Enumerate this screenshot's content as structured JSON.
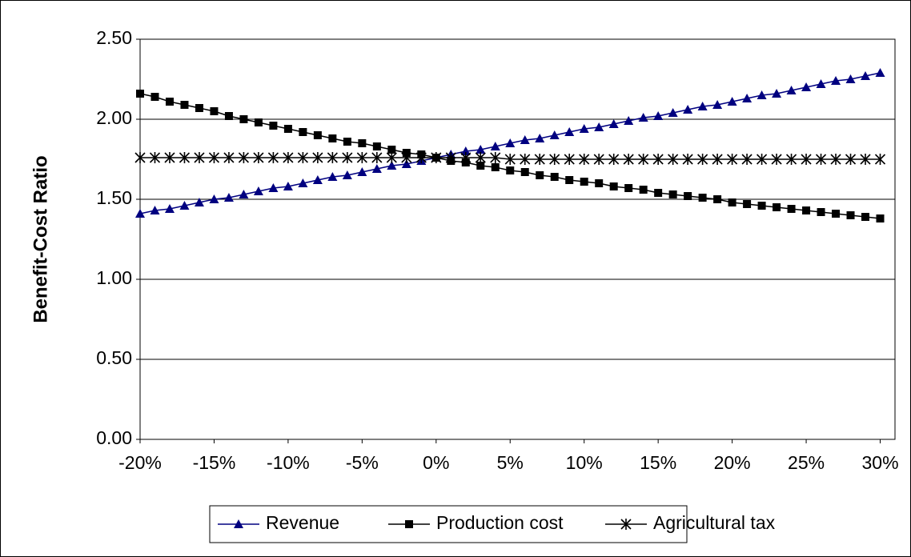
{
  "chart_data": {
    "type": "line",
    "y_label": "Benefit-Cost Ratio",
    "x": [
      -20,
      -19,
      -18,
      -17,
      -16,
      -15,
      -14,
      -13,
      -12,
      -11,
      -10,
      -9,
      -8,
      -7,
      -6,
      -5,
      -4,
      -3,
      -2,
      -1,
      0,
      1,
      2,
      3,
      4,
      5,
      6,
      7,
      8,
      9,
      10,
      11,
      12,
      13,
      14,
      15,
      16,
      17,
      18,
      19,
      20,
      21,
      22,
      23,
      24,
      25,
      26,
      27,
      28,
      29,
      30
    ],
    "series": [
      {
        "name": "Revenue",
        "color": "#000080",
        "marker": "triangle",
        "values": [
          1.41,
          1.43,
          1.44,
          1.46,
          1.48,
          1.5,
          1.51,
          1.53,
          1.55,
          1.57,
          1.58,
          1.6,
          1.62,
          1.64,
          1.65,
          1.67,
          1.69,
          1.71,
          1.72,
          1.74,
          1.76,
          1.78,
          1.8,
          1.81,
          1.83,
          1.85,
          1.87,
          1.88,
          1.9,
          1.92,
          1.94,
          1.95,
          1.97,
          1.99,
          2.01,
          2.02,
          2.04,
          2.06,
          2.08,
          2.09,
          2.11,
          2.13,
          2.15,
          2.16,
          2.18,
          2.2,
          2.22,
          2.24,
          2.25,
          2.27,
          2.29
        ]
      },
      {
        "name": "Production cost",
        "color": "#000000",
        "marker": "square",
        "values": [
          2.16,
          2.14,
          2.11,
          2.09,
          2.07,
          2.05,
          2.02,
          2.0,
          1.98,
          1.96,
          1.94,
          1.92,
          1.9,
          1.88,
          1.86,
          1.85,
          1.83,
          1.81,
          1.79,
          1.78,
          1.76,
          1.74,
          1.73,
          1.71,
          1.7,
          1.68,
          1.67,
          1.65,
          1.64,
          1.62,
          1.61,
          1.6,
          1.58,
          1.57,
          1.56,
          1.54,
          1.53,
          1.52,
          1.51,
          1.5,
          1.48,
          1.47,
          1.46,
          1.45,
          1.44,
          1.43,
          1.42,
          1.41,
          1.4,
          1.39,
          1.38
        ]
      },
      {
        "name": "Agricultural tax",
        "color": "#000000",
        "marker": "star",
        "values": [
          1.76,
          1.76,
          1.76,
          1.76,
          1.76,
          1.76,
          1.76,
          1.76,
          1.76,
          1.76,
          1.76,
          1.76,
          1.76,
          1.76,
          1.76,
          1.76,
          1.76,
          1.76,
          1.76,
          1.76,
          1.76,
          1.76,
          1.76,
          1.76,
          1.76,
          1.75,
          1.75,
          1.75,
          1.75,
          1.75,
          1.75,
          1.75,
          1.75,
          1.75,
          1.75,
          1.75,
          1.75,
          1.75,
          1.75,
          1.75,
          1.75,
          1.75,
          1.75,
          1.75,
          1.75,
          1.75,
          1.75,
          1.75,
          1.75,
          1.75,
          1.75
        ]
      }
    ],
    "xlim": [
      -20,
      31
    ],
    "xticks": [
      {
        "value": -20,
        "label": "-20%"
      },
      {
        "value": -15,
        "label": "-15%"
      },
      {
        "value": -10,
        "label": "-10%"
      },
      {
        "value": -5,
        "label": "-5%"
      },
      {
        "value": 0,
        "label": "0%"
      },
      {
        "value": 5,
        "label": "5%"
      },
      {
        "value": 10,
        "label": "10%"
      },
      {
        "value": 15,
        "label": "15%"
      },
      {
        "value": 20,
        "label": "20%"
      },
      {
        "value": 25,
        "label": "25%"
      },
      {
        "value": 30,
        "label": "30%"
      }
    ],
    "ylim": [
      0,
      2.5
    ],
    "yticks": [
      {
        "value": 0,
        "label": "0.00"
      },
      {
        "value": 0.5,
        "label": "0.50"
      },
      {
        "value": 1,
        "label": "1.00"
      },
      {
        "value": 1.5,
        "label": "1.50"
      },
      {
        "value": 2,
        "label": "2.00"
      },
      {
        "value": 2.5,
        "label": "2.50"
      }
    ],
    "grid": true,
    "legend": "bottom"
  }
}
